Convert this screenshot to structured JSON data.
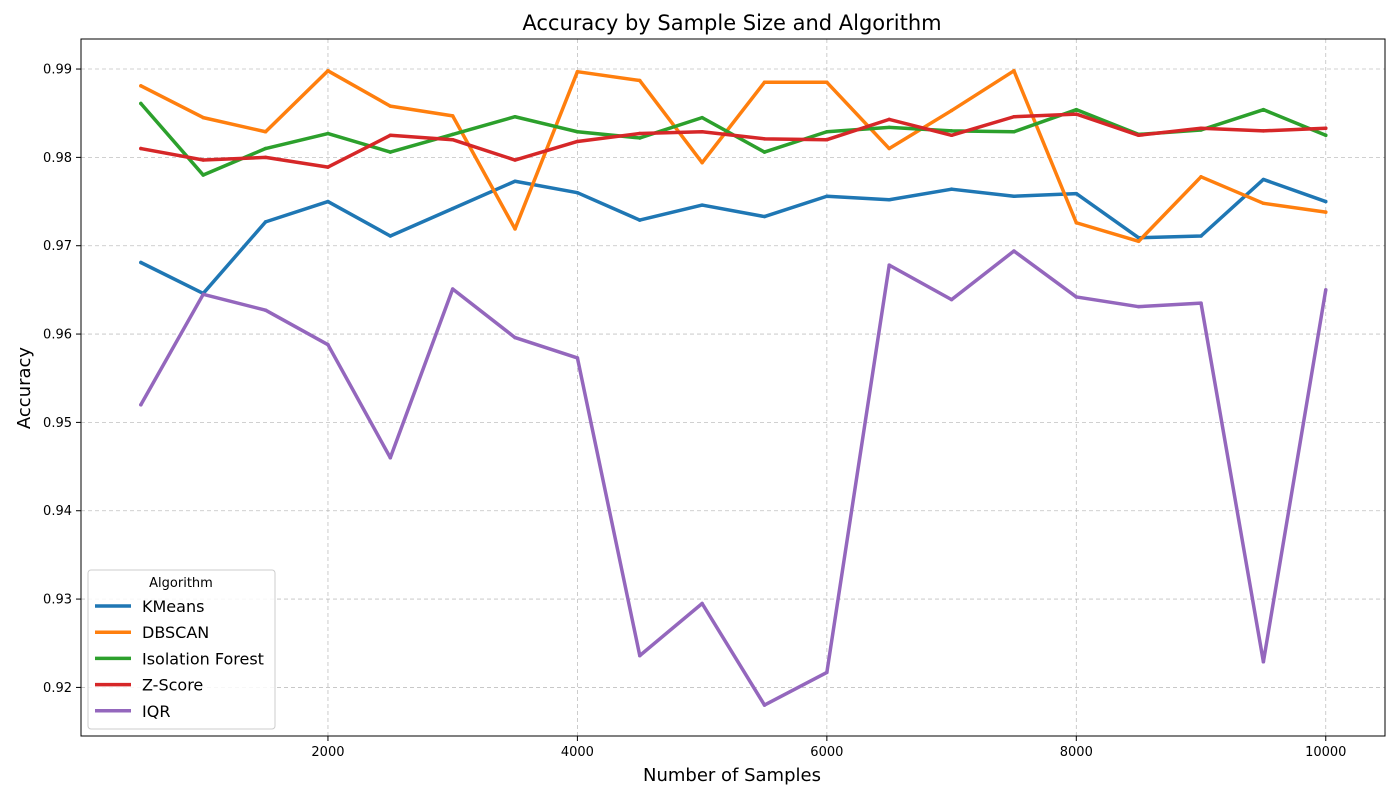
{
  "chart_data": {
    "type": "line",
    "title": "Accuracy by Sample Size and Algorithm",
    "xlabel": "Number of Samples",
    "ylabel": "Accuracy",
    "xlim": [
      20,
      10475
    ],
    "ylim": [
      0.9145,
      0.9934
    ],
    "xticks": [
      2000,
      4000,
      6000,
      8000,
      10000
    ],
    "yticks": [
      0.92,
      0.93,
      0.94,
      0.95,
      0.96,
      0.97,
      0.98,
      0.99
    ],
    "ytick_format": 2,
    "grid": true,
    "legend": {
      "title": "Algorithm",
      "placement": "lower-left"
    },
    "x": [
      500,
      1000,
      1500,
      2000,
      2500,
      3000,
      3500,
      4000,
      4500,
      5000,
      5500,
      6000,
      6500,
      7000,
      7500,
      8000,
      8500,
      9000,
      9500,
      10000
    ],
    "series": [
      {
        "name": "KMeans",
        "color": "#1f77b4",
        "values": [
          0.9681,
          0.9646,
          0.9727,
          0.975,
          0.9711,
          0.9742,
          0.9773,
          0.976,
          0.9729,
          0.9746,
          0.9733,
          0.9756,
          0.9752,
          0.9764,
          0.9756,
          0.9759,
          0.9709,
          0.9711,
          0.9775,
          0.975
        ]
      },
      {
        "name": "DBSCAN",
        "color": "#ff7f0e",
        "values": [
          0.9881,
          0.9845,
          0.9829,
          0.9898,
          0.9858,
          0.9847,
          0.9719,
          0.9897,
          0.9887,
          0.9794,
          0.9885,
          0.9885,
          0.981,
          0.9853,
          0.9898,
          0.9726,
          0.9705,
          0.9778,
          0.9748,
          0.9738
        ]
      },
      {
        "name": "Isolation Forest",
        "color": "#2ca02c",
        "values": [
          0.9861,
          0.978,
          0.981,
          0.9827,
          0.9806,
          0.9826,
          0.9846,
          0.9829,
          0.9822,
          0.9845,
          0.9806,
          0.9829,
          0.9834,
          0.983,
          0.9829,
          0.9854,
          0.9826,
          0.9831,
          0.9854,
          0.9825
        ]
      },
      {
        "name": "Z-Score",
        "color": "#d62728",
        "values": [
          0.981,
          0.9797,
          0.98,
          0.9789,
          0.9825,
          0.982,
          0.9797,
          0.9818,
          0.9827,
          0.9829,
          0.9821,
          0.982,
          0.9843,
          0.9825,
          0.9846,
          0.9849,
          0.9825,
          0.9833,
          0.983,
          0.9833
        ]
      },
      {
        "name": "IQR",
        "color": "#9467bd",
        "values": [
          0.952,
          0.9645,
          0.9627,
          0.9588,
          0.946,
          0.9651,
          0.9596,
          0.9573,
          0.9236,
          0.9295,
          0.918,
          0.9217,
          0.9678,
          0.9639,
          0.9694,
          0.9642,
          0.9631,
          0.9635,
          0.9229,
          0.965
        ]
      }
    ]
  }
}
